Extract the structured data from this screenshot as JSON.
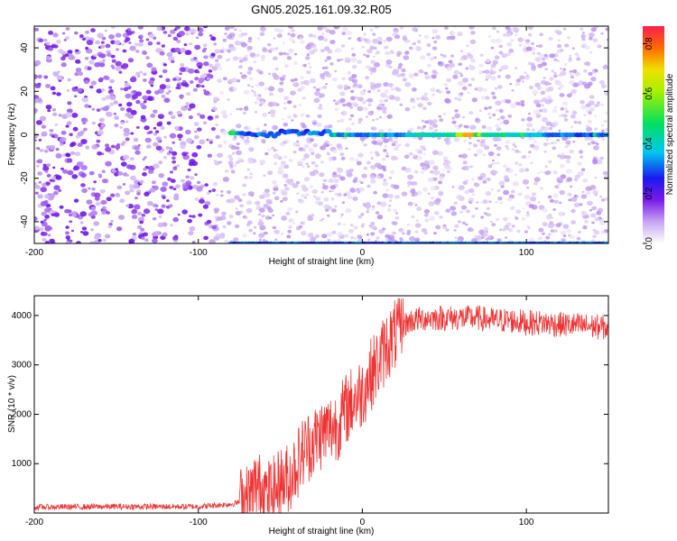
{
  "title": "GN05.2025.161.09.32.R05",
  "chart_data": [
    {
      "type": "heatmap",
      "xlabel": "Height of straight line (km)",
      "ylabel": "Frequency (Hz)",
      "xlim": [
        -200,
        150
      ],
      "ylim": [
        -50,
        50
      ],
      "x_ticks": [
        "-200",
        "-100",
        "0",
        "100"
      ],
      "y_ticks": [
        "40",
        "20",
        "0",
        "-20",
        "-40"
      ],
      "colorbar": {
        "label": "Normalized spectral amplitude",
        "range": [
          0.0,
          0.87
        ],
        "ticks": [
          "0.0",
          "0.2",
          "0.4",
          "0.6",
          "0.8"
        ]
      },
      "features": [
        {
          "name": "",
          "description": "",
          "freq_hz": 0,
          "x_from_km": -80,
          "x_to_km": 150,
          "peak_x_km": 65,
          "peak_amplitude": 0.85
        },
        {
          "name": "",
          "freq_hz": -50,
          "x_from_km": -80,
          "x_to_km": 150
        }
      ]
    },
    {
      "type": "line",
      "xlabel": "Height of straight line (km)",
      "ylabel": "SNR (10 * v/v)",
      "xlim": [
        -200,
        150
      ],
      "ylim": [
        0,
        4400
      ],
      "x_ticks": [
        "-200",
        "-100",
        "0",
        "100"
      ],
      "y_ticks": [
        "4000",
        "3000",
        "2000",
        "1000"
      ],
      "color": "#ee3333",
      "series": [
        {
          "name": "",
          "x": [
            -200,
            -150,
            -100,
            -80,
            -70,
            -65,
            -60,
            -55,
            -50,
            -45,
            -40,
            -35,
            -30,
            -25,
            -20,
            -15,
            -10,
            -5,
            0,
            5,
            10,
            15,
            20,
            25,
            30,
            40,
            50,
            60,
            70,
            80,
            90,
            100,
            110,
            120,
            130,
            140,
            150
          ],
          "y": [
            120,
            130,
            130,
            180,
            260,
            550,
            420,
            380,
            600,
            700,
            1000,
            1300,
            1450,
            1600,
            1700,
            1800,
            2100,
            2300,
            2450,
            2800,
            3050,
            3400,
            3600,
            3800,
            3900,
            3950,
            3950,
            3950,
            3950,
            3900,
            3900,
            3850,
            3850,
            3820,
            3800,
            3780,
            3750
          ]
        }
      ]
    }
  ]
}
